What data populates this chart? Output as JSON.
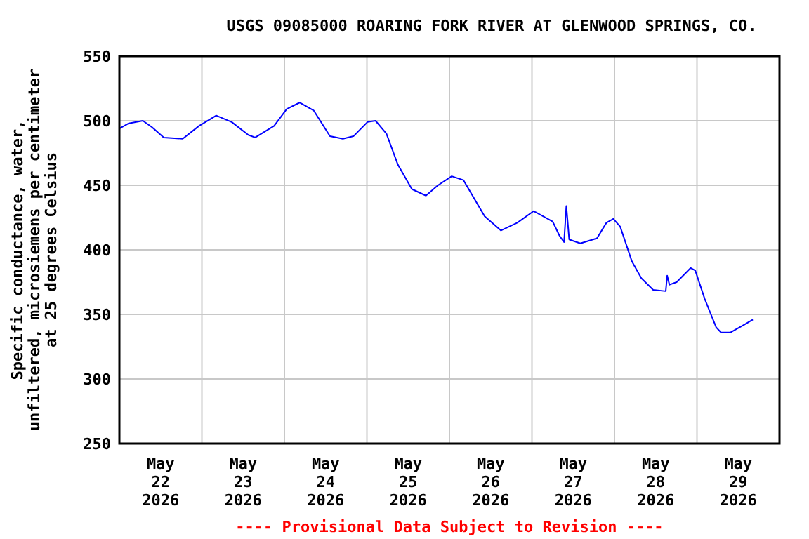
{
  "chart_data": {
    "type": "line",
    "title": "USGS 09085000 ROARING FORK RIVER AT GLENWOOD SPRINGS, CO.",
    "ylabel": "Specific conductance, water,\nunfiltered, microsiemens per centimeter\nat 25 degrees Celsius",
    "annotations": [
      "---- Provisional Data Subject to Revision ----"
    ],
    "x": [
      "2026-05-22T00:00",
      "2026-05-22T02:45",
      "2026-05-22T06:50",
      "2026-05-22T09:30",
      "2026-05-22T12:55",
      "2026-05-22T18:25",
      "2026-05-22T23:10",
      "2026-05-23T04:10",
      "2026-05-23T08:40",
      "2026-05-23T13:30",
      "2026-05-23T15:30",
      "2026-05-23T21:00",
      "2026-05-24T00:40",
      "2026-05-24T04:25",
      "2026-05-24T08:30",
      "2026-05-24T13:15",
      "2026-05-24T17:00",
      "2026-05-24T20:05",
      "2026-05-25T00:10",
      "2026-05-25T02:30",
      "2026-05-25T05:40",
      "2026-05-25T09:00",
      "2026-05-25T13:05",
      "2026-05-25T17:10",
      "2026-05-25T20:40",
      "2026-05-26T00:40",
      "2026-05-26T04:05",
      "2026-05-26T10:15",
      "2026-05-26T15:00",
      "2026-05-26T19:45",
      "2026-05-27T00:30",
      "2026-05-27T06:00",
      "2026-05-27T08:00",
      "2026-05-27T09:20",
      "2026-05-27T10:00",
      "2026-05-27T10:50",
      "2026-05-27T14:05",
      "2026-05-27T18:55",
      "2026-05-27T21:40",
      "2026-05-27T23:40",
      "2026-05-28T01:40",
      "2026-05-28T05:05",
      "2026-05-28T07:50",
      "2026-05-28T11:15",
      "2026-05-28T14:55",
      "2026-05-28T15:20",
      "2026-05-28T16:00",
      "2026-05-28T18:05",
      "2026-05-28T22:10",
      "2026-05-28T23:30",
      "2026-05-29T02:15",
      "2026-05-29T05:35",
      "2026-05-29T07:00",
      "2026-05-29T09:40",
      "2026-05-29T13:45",
      "2026-05-29T16:15"
    ],
    "series": [
      {
        "color": "#0000ff",
        "values": [
          494,
          498,
          500,
          495,
          487,
          486,
          496,
          504,
          499,
          489,
          487,
          496,
          509,
          514,
          508,
          488,
          486,
          488,
          499,
          500,
          490,
          466,
          447,
          442,
          450,
          457,
          454,
          426,
          415,
          421,
          430,
          422,
          411,
          406,
          434,
          408,
          405,
          409,
          421,
          424,
          418,
          391,
          378,
          369,
          368,
          380,
          373,
          375,
          386,
          384,
          362,
          340,
          336,
          336,
          342,
          346
        ]
      }
    ],
    "xlim": [
      "2026-05-22T00:00",
      "2026-05-30T00:00"
    ],
    "xticks": [
      {
        "value": "2026-05-22T00:00",
        "label": null
      },
      {
        "value": "2026-05-22T12:00",
        "label": "May\n22\n2026"
      },
      {
        "value": "2026-05-23T00:00",
        "label": null
      },
      {
        "value": "2026-05-23T12:00",
        "label": "May\n23\n2026"
      },
      {
        "value": "2026-05-24T00:00",
        "label": null
      },
      {
        "value": "2026-05-24T12:00",
        "label": "May\n24\n2026"
      },
      {
        "value": "2026-05-25T00:00",
        "label": null
      },
      {
        "value": "2026-05-25T12:00",
        "label": "May\n25\n2026"
      },
      {
        "value": "2026-05-26T00:00",
        "label": null
      },
      {
        "value": "2026-05-26T12:00",
        "label": "May\n26\n2026"
      },
      {
        "value": "2026-05-27T00:00",
        "label": null
      },
      {
        "value": "2026-05-27T12:00",
        "label": "May\n27\n2026"
      },
      {
        "value": "2026-05-28T00:00",
        "label": null
      },
      {
        "value": "2026-05-28T12:00",
        "label": "May\n28\n2026"
      },
      {
        "value": "2026-05-29T00:00",
        "label": null
      },
      {
        "value": "2026-05-29T12:00",
        "label": "May\n29\n2026"
      },
      {
        "value": "2026-05-30T00:00",
        "label": null
      }
    ],
    "ylim": [
      250,
      550
    ],
    "yticks": [
      250,
      300,
      350,
      400,
      450,
      500,
      550
    ],
    "grid": true,
    "marker": "none",
    "line_style": "solid"
  }
}
